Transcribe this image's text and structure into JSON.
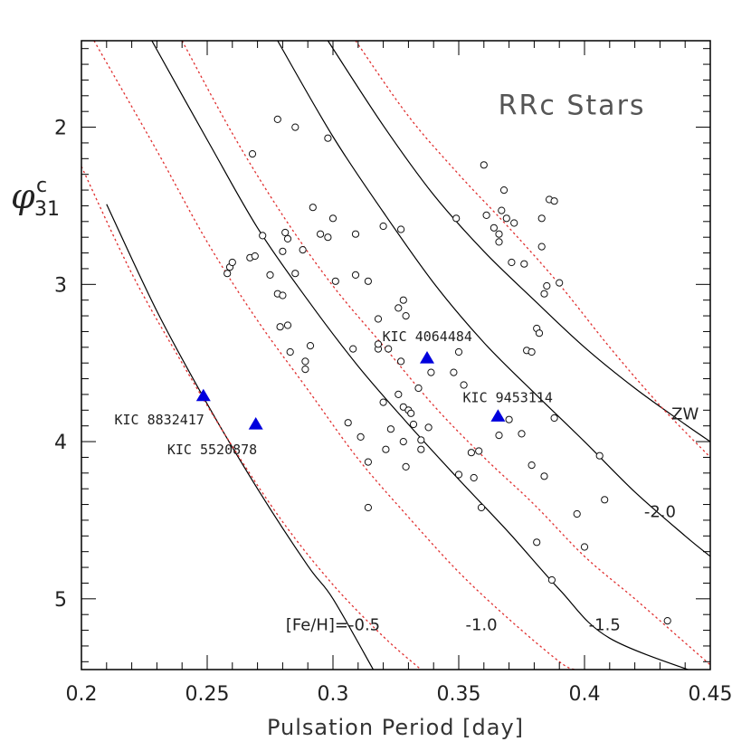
{
  "chart_data": {
    "type": "scatter",
    "title": "RRc Stars",
    "xlabel": "Pulsation Period  [day]",
    "ylabel_main": "φ",
    "ylabel_sup": "c",
    "ylabel_sub": "31",
    "xlim": [
      0.2,
      0.45
    ],
    "ylim": [
      5.45,
      1.45
    ],
    "y_inverted": true,
    "x_ticks": [
      0.2,
      0.25,
      0.3,
      0.35,
      0.4,
      0.45
    ],
    "x_tick_labels": [
      "0.2",
      "0.25",
      "0.3",
      "0.35",
      "0.4",
      "0.45"
    ],
    "y_ticks": [
      2,
      3,
      4,
      5
    ],
    "y_tick_labels": [
      "2",
      "3",
      "4",
      "5"
    ],
    "colors": {
      "solid_curve": "#000000",
      "dotted_curve": "#e03030",
      "kic_marker": "#0000dd",
      "zw_label": "#e03030"
    },
    "field_stars": [
      [
        0.258,
        2.93
      ],
      [
        0.259,
        2.89
      ],
      [
        0.26,
        2.86
      ],
      [
        0.267,
        2.83
      ],
      [
        0.269,
        2.82
      ],
      [
        0.268,
        2.17
      ],
      [
        0.272,
        2.69
      ],
      [
        0.275,
        2.94
      ],
      [
        0.278,
        3.06
      ],
      [
        0.279,
        3.27
      ],
      [
        0.28,
        3.07
      ],
      [
        0.28,
        2.79
      ],
      [
        0.281,
        2.67
      ],
      [
        0.282,
        2.71
      ],
      [
        0.282,
        3.26
      ],
      [
        0.283,
        3.43
      ],
      [
        0.285,
        2.93
      ],
      [
        0.278,
        1.95
      ],
      [
        0.285,
        2.0
      ],
      [
        0.288,
        2.78
      ],
      [
        0.289,
        3.49
      ],
      [
        0.289,
        3.54
      ],
      [
        0.291,
        3.39
      ],
      [
        0.292,
        2.51
      ],
      [
        0.295,
        2.68
      ],
      [
        0.298,
        2.7
      ],
      [
        0.298,
        2.07
      ],
      [
        0.3,
        2.58
      ],
      [
        0.301,
        2.98
      ],
      [
        0.306,
        3.88
      ],
      [
        0.308,
        3.41
      ],
      [
        0.309,
        2.94
      ],
      [
        0.309,
        2.68
      ],
      [
        0.311,
        3.97
      ],
      [
        0.314,
        2.98
      ],
      [
        0.314,
        4.13
      ],
      [
        0.314,
        4.42
      ],
      [
        0.318,
        3.41
      ],
      [
        0.318,
        3.38
      ],
      [
        0.318,
        3.22
      ],
      [
        0.32,
        2.63
      ],
      [
        0.32,
        3.75
      ],
      [
        0.321,
        4.05
      ],
      [
        0.322,
        3.41
      ],
      [
        0.323,
        3.92
      ],
      [
        0.326,
        3.7
      ],
      [
        0.326,
        3.15
      ],
      [
        0.327,
        2.65
      ],
      [
        0.327,
        3.49
      ],
      [
        0.328,
        3.78
      ],
      [
        0.328,
        4.0
      ],
      [
        0.328,
        3.1
      ],
      [
        0.329,
        4.16
      ],
      [
        0.329,
        3.2
      ],
      [
        0.33,
        3.8
      ],
      [
        0.331,
        3.82
      ],
      [
        0.332,
        3.89
      ],
      [
        0.334,
        3.66
      ],
      [
        0.335,
        4.05
      ],
      [
        0.335,
        3.99
      ],
      [
        0.338,
        3.91
      ],
      [
        0.339,
        3.56
      ],
      [
        0.348,
        3.56
      ],
      [
        0.349,
        2.58
      ],
      [
        0.35,
        3.43
      ],
      [
        0.35,
        4.21
      ],
      [
        0.352,
        3.64
      ],
      [
        0.355,
        4.07
      ],
      [
        0.356,
        4.23
      ],
      [
        0.358,
        4.06
      ],
      [
        0.359,
        4.42
      ],
      [
        0.36,
        2.24
      ],
      [
        0.361,
        2.56
      ],
      [
        0.364,
        2.64
      ],
      [
        0.366,
        3.96
      ],
      [
        0.366,
        2.68
      ],
      [
        0.366,
        2.73
      ],
      [
        0.367,
        2.53
      ],
      [
        0.368,
        2.4
      ],
      [
        0.369,
        2.58
      ],
      [
        0.37,
        3.86
      ],
      [
        0.371,
        2.86
      ],
      [
        0.372,
        2.61
      ],
      [
        0.375,
        3.95
      ],
      [
        0.376,
        2.87
      ],
      [
        0.377,
        3.42
      ],
      [
        0.379,
        3.43
      ],
      [
        0.379,
        4.15
      ],
      [
        0.381,
        4.64
      ],
      [
        0.381,
        3.28
      ],
      [
        0.382,
        3.31
      ],
      [
        0.383,
        2.76
      ],
      [
        0.383,
        2.58
      ],
      [
        0.384,
        3.06
      ],
      [
        0.384,
        4.22
      ],
      [
        0.385,
        3.01
      ],
      [
        0.386,
        2.46
      ],
      [
        0.387,
        4.88
      ],
      [
        0.388,
        2.47
      ],
      [
        0.388,
        3.85
      ],
      [
        0.39,
        2.99
      ],
      [
        0.397,
        4.46
      ],
      [
        0.4,
        4.67
      ],
      [
        0.406,
        4.09
      ],
      [
        0.408,
        4.37
      ],
      [
        0.433,
        5.14
      ]
    ],
    "kic_stars": [
      {
        "label": "KIC 8832417",
        "x": 0.2485,
        "y": 3.71
      },
      {
        "label": "KIC 5520878",
        "x": 0.2693,
        "y": 3.89
      },
      {
        "label": "KIC 4064484",
        "x": 0.3374,
        "y": 3.47
      },
      {
        "label": "KIC 9453114",
        "x": 0.3656,
        "y": 3.84
      }
    ],
    "curves": [
      {
        "label": "[Fe/H]=-0.5",
        "style": "solid",
        "points": [
          [
            0.21,
            2.49
          ],
          [
            0.23,
            3.17
          ],
          [
            0.25,
            3.76
          ],
          [
            0.27,
            4.3
          ],
          [
            0.29,
            4.79
          ],
          [
            0.3,
            5.0
          ],
          [
            0.316,
            5.45
          ]
        ]
      },
      {
        "label": "",
        "style": "dotted",
        "points": [
          [
            0.2,
            2.25
          ],
          [
            0.22,
            2.93
          ],
          [
            0.24,
            3.5
          ],
          [
            0.26,
            4.03
          ],
          [
            0.28,
            4.51
          ],
          [
            0.3,
            4.91
          ],
          [
            0.32,
            5.24
          ],
          [
            0.335,
            5.45
          ]
        ]
      },
      {
        "label": "",
        "style": "dotted",
        "points": [
          [
            0.205,
            1.45
          ],
          [
            0.23,
            2.15
          ],
          [
            0.25,
            2.73
          ],
          [
            0.27,
            3.23
          ],
          [
            0.29,
            3.67
          ],
          [
            0.31,
            4.11
          ],
          [
            0.33,
            4.48
          ],
          [
            0.35,
            4.83
          ],
          [
            0.37,
            5.13
          ],
          [
            0.39,
            5.4
          ],
          [
            0.396,
            5.45
          ]
        ]
      },
      {
        "label": "-1.0",
        "style": "solid",
        "points": [
          [
            0.228,
            1.45
          ],
          [
            0.25,
            2.08
          ],
          [
            0.27,
            2.64
          ],
          [
            0.29,
            3.1
          ],
          [
            0.31,
            3.52
          ],
          [
            0.33,
            3.89
          ],
          [
            0.35,
            4.24
          ],
          [
            0.37,
            4.58
          ],
          [
            0.39,
            4.94
          ],
          [
            0.41,
            5.25
          ],
          [
            0.45,
            5.5
          ]
        ]
      },
      {
        "label": "",
        "style": "dotted",
        "points": [
          [
            0.24,
            1.45
          ],
          [
            0.26,
            2.04
          ],
          [
            0.28,
            2.56
          ],
          [
            0.3,
            3.01
          ],
          [
            0.32,
            3.39
          ],
          [
            0.34,
            3.77
          ],
          [
            0.36,
            4.1
          ],
          [
            0.38,
            4.4
          ],
          [
            0.4,
            4.73
          ],
          [
            0.42,
            5.0
          ],
          [
            0.44,
            5.28
          ],
          [
            0.45,
            5.42
          ]
        ]
      },
      {
        "label": "-1.5",
        "style": "solid",
        "points": [
          [
            0.278,
            1.45
          ],
          [
            0.3,
            2.06
          ],
          [
            0.32,
            2.54
          ],
          [
            0.34,
            2.99
          ],
          [
            0.36,
            3.37
          ],
          [
            0.38,
            3.69
          ],
          [
            0.4,
            4.0
          ],
          [
            0.42,
            4.32
          ],
          [
            0.44,
            4.6
          ],
          [
            0.45,
            4.73
          ]
        ]
      },
      {
        "label": "-2.0",
        "style": "solid",
        "points": [
          [
            0.298,
            1.45
          ],
          [
            0.32,
            1.99
          ],
          [
            0.34,
            2.43
          ],
          [
            0.36,
            2.79
          ],
          [
            0.38,
            3.1
          ],
          [
            0.4,
            3.4
          ],
          [
            0.42,
            3.66
          ],
          [
            0.44,
            3.89
          ],
          [
            0.45,
            4.0
          ]
        ]
      },
      {
        "label": "ZW",
        "style": "dotted",
        "points": [
          [
            0.309,
            1.45
          ],
          [
            0.33,
            1.93
          ],
          [
            0.35,
            2.3
          ],
          [
            0.37,
            2.64
          ],
          [
            0.39,
            3.0
          ],
          [
            0.41,
            3.4
          ],
          [
            0.43,
            3.77
          ],
          [
            0.45,
            4.1
          ]
        ]
      }
    ],
    "annotations": [
      {
        "text": "RRc Stars",
        "x": 0.395,
        "y": 1.92
      },
      {
        "text": "[Fe/H]=-0.5",
        "x": 0.3,
        "y": 5.2
      },
      {
        "text": "-1.0",
        "x": 0.359,
        "y": 5.2
      },
      {
        "text": "-1.5",
        "x": 0.408,
        "y": 5.2
      },
      {
        "text": "-2.0",
        "x": 0.43,
        "y": 4.48
      },
      {
        "text": "ZW",
        "x": 0.44,
        "y": 3.86
      },
      {
        "text": "KIC 8832417",
        "x": 0.231,
        "y": 3.89
      },
      {
        "text": "KIC 5520878",
        "x": 0.252,
        "y": 4.08
      },
      {
        "text": "KIC 4064484",
        "x": 0.3375,
        "y": 3.36
      },
      {
        "text": "KIC 9453114",
        "x": 0.3695,
        "y": 3.75
      }
    ]
  }
}
